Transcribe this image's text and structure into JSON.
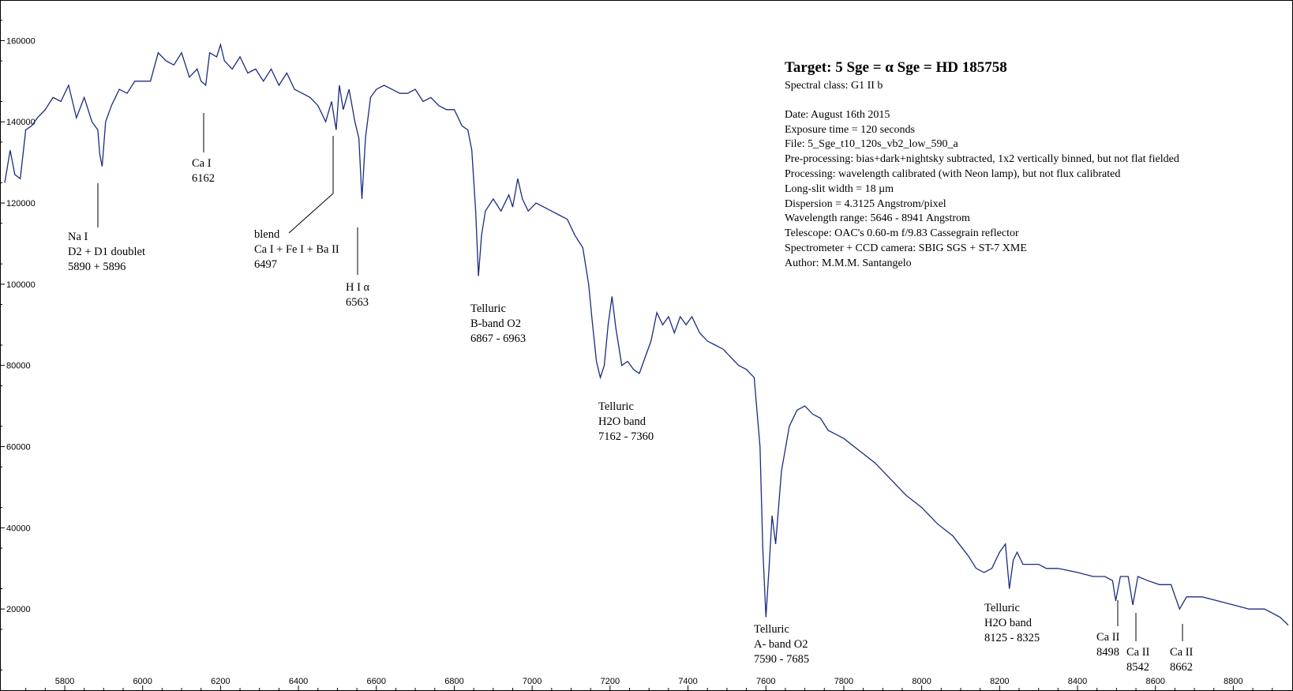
{
  "info": {
    "title": "Target: 5 Sge = α Sge = HD 185758",
    "spectral_class": "Spectral class:  G1 II b",
    "lines": [
      "Date: August 16th 2015",
      "Exposure time = 120 seconds",
      "File: 5_Sge_t10_120s_vb2_low_590_a",
      "Pre-processing: bias+dark+nightsky subtracted, 1x2 vertically binned, but not flat fielded",
      "Processing: wavelength calibrated (with Neon lamp), but not flux calibrated",
      "Long-slit width = 18 µm",
      "Dispersion = 4.3125 Angstrom/pixel",
      "Wavelength range: 5646 - 8941 Angstrom",
      "Telescope: OAC's 0.60-m  f/9.83 Cassegrain reflector",
      "Spectrometer + CCD camera: SBIG SGS + ST-7 XME",
      "Author: M.M.M. Santangelo"
    ]
  },
  "annotations": [
    {
      "lines": [
        "Na I",
        "D2 + D1 doublet",
        "5890 + 5896"
      ]
    },
    {
      "lines": [
        "Ca I",
        "6162"
      ]
    },
    {
      "lines": [
        "blend",
        "Ca I + Fe I + Ba II",
        "6497"
      ]
    },
    {
      "lines": [
        "H I  α",
        "6563"
      ]
    },
    {
      "lines": [
        "Telluric",
        "B-band O2",
        "6867 - 6963"
      ]
    },
    {
      "lines": [
        "Telluric",
        "H2O band",
        "7162 - 7360"
      ]
    },
    {
      "lines": [
        "Telluric",
        "A- band O2",
        "7590 - 7685"
      ]
    },
    {
      "lines": [
        "Telluric",
        "H2O band",
        "8125 - 8325"
      ]
    },
    {
      "lines": [
        "Ca II",
        "8498"
      ]
    },
    {
      "lines": [
        "Ca II",
        "8542"
      ]
    },
    {
      "lines": [
        "Ca II",
        "8662"
      ]
    }
  ],
  "chart_data": {
    "type": "line",
    "title": "",
    "xlabel": "",
    "ylabel": "",
    "xlim": [
      5646,
      8941
    ],
    "ylim": [
      0,
      170000
    ],
    "x_ticks": [
      5800,
      6000,
      6200,
      6400,
      6600,
      6800,
      7000,
      7200,
      7400,
      7600,
      7800,
      8000,
      8200,
      8400,
      8600,
      8800
    ],
    "y_ticks": [
      20000,
      40000,
      60000,
      80000,
      100000,
      120000,
      140000,
      160000
    ],
    "grid": false,
    "line_color": "#1c2b80",
    "series": [
      {
        "name": "",
        "x": [
          5646,
          5660,
          5672,
          5686,
          5700,
          5715,
          5730,
          5750,
          5770,
          5790,
          5810,
          5830,
          5850,
          5870,
          5885,
          5890,
          5896,
          5905,
          5920,
          5940,
          5960,
          5980,
          6000,
          6020,
          6040,
          6060,
          6080,
          6100,
          6120,
          6140,
          6150,
          6162,
          6172,
          6190,
          6200,
          6210,
          6230,
          6250,
          6270,
          6290,
          6310,
          6330,
          6350,
          6370,
          6390,
          6410,
          6430,
          6450,
          6470,
          6485,
          6497,
          6505,
          6515,
          6530,
          6545,
          6555,
          6563,
          6572,
          6585,
          6600,
          6620,
          6640,
          6660,
          6680,
          6700,
          6720,
          6740,
          6760,
          6780,
          6800,
          6820,
          6835,
          6845,
          6855,
          6862,
          6870,
          6880,
          6900,
          6920,
          6940,
          6950,
          6963,
          6975,
          6990,
          7010,
          7030,
          7050,
          7070,
          7090,
          7110,
          7130,
          7145,
          7155,
          7165,
          7175,
          7185,
          7195,
          7205,
          7215,
          7230,
          7245,
          7260,
          7275,
          7290,
          7305,
          7320,
          7335,
          7350,
          7365,
          7380,
          7395,
          7410,
          7430,
          7450,
          7470,
          7490,
          7510,
          7530,
          7550,
          7570,
          7585,
          7592,
          7600,
          7608,
          7616,
          7625,
          7640,
          7660,
          7680,
          7700,
          7720,
          7740,
          7760,
          7780,
          7800,
          7840,
          7880,
          7920,
          7960,
          8000,
          8040,
          8080,
          8120,
          8140,
          8160,
          8180,
          8200,
          8215,
          8225,
          8235,
          8245,
          8260,
          8280,
          8300,
          8320,
          8350,
          8400,
          8440,
          8470,
          8490,
          8498,
          8510,
          8530,
          8542,
          8555,
          8580,
          8610,
          8640,
          8662,
          8680,
          8720,
          8760,
          8800,
          8840,
          8880,
          8920,
          8941
        ],
        "y": [
          125000,
          133000,
          127000,
          126000,
          138000,
          139000,
          141000,
          143000,
          146000,
          145000,
          149000,
          141000,
          146000,
          140000,
          138000,
          132000,
          129000,
          140000,
          144000,
          148000,
          147000,
          150000,
          150000,
          150000,
          157000,
          155000,
          154000,
          157000,
          151000,
          153000,
          150000,
          149000,
          157000,
          156000,
          159000,
          155000,
          153000,
          156000,
          152000,
          153000,
          150000,
          153000,
          149000,
          152000,
          148000,
          147000,
          146000,
          144000,
          140000,
          145000,
          138000,
          149000,
          143000,
          148000,
          140000,
          136000,
          121000,
          136000,
          146000,
          148000,
          149000,
          148000,
          147000,
          147000,
          148000,
          145000,
          146000,
          144000,
          143000,
          143000,
          139000,
          138000,
          133000,
          118000,
          102000,
          112000,
          118000,
          121000,
          118000,
          122000,
          119000,
          126000,
          121000,
          118000,
          120000,
          119000,
          118000,
          117000,
          116000,
          112000,
          109000,
          100000,
          90000,
          81000,
          77000,
          80000,
          90000,
          97000,
          89000,
          80000,
          81000,
          79000,
          78000,
          82000,
          86000,
          93000,
          90000,
          92000,
          88000,
          92000,
          90000,
          92000,
          88000,
          86000,
          85000,
          84000,
          82000,
          80000,
          79000,
          77000,
          60000,
          35000,
          18000,
          30000,
          43000,
          36000,
          54000,
          65000,
          69000,
          70000,
          68000,
          67000,
          64000,
          63000,
          62000,
          59000,
          56000,
          52000,
          48000,
          45000,
          41000,
          38000,
          33000,
          30000,
          29000,
          30000,
          34000,
          36000,
          25000,
          32000,
          34000,
          31000,
          31000,
          31000,
          30000,
          30000,
          29000,
          28000,
          28000,
          27000,
          22000,
          28000,
          28000,
          21000,
          28000,
          27000,
          26000,
          26000,
          20000,
          23000,
          23000,
          22000,
          21000,
          20000,
          20000,
          18000,
          16000
        ]
      }
    ]
  }
}
